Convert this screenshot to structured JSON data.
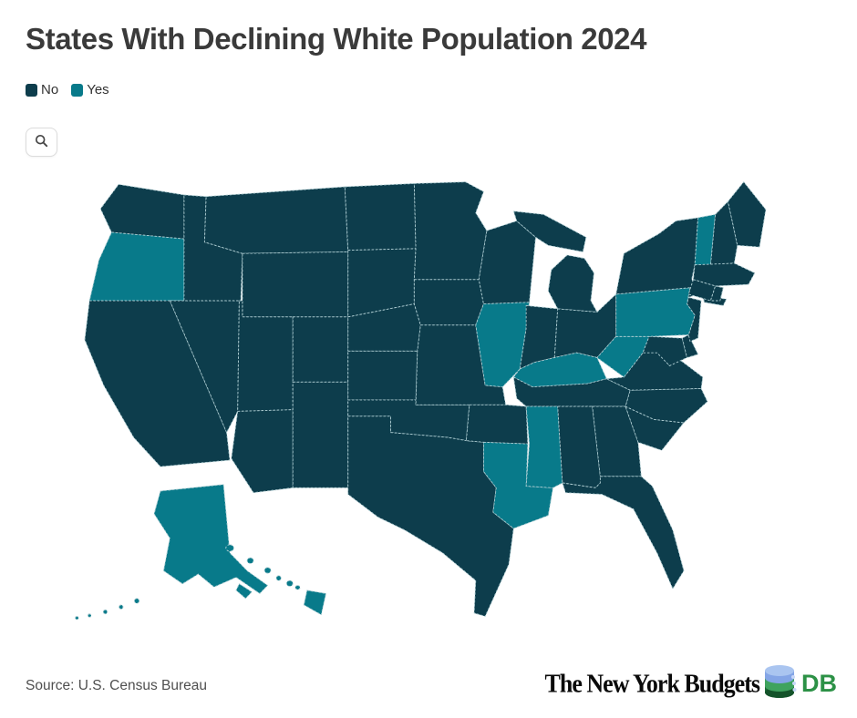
{
  "title": "States With Declining White Population 2024",
  "legend": {
    "items": [
      {
        "label": "No",
        "color": "#0d3d4c"
      },
      {
        "label": "Yes",
        "color": "#087a8a"
      }
    ]
  },
  "toolbar": {
    "zoom_icon": "magnifier"
  },
  "map": {
    "border_color": "#aecdd2",
    "no_color": "#0d3d4c",
    "yes_color": "#087a8a"
  },
  "source": {
    "label": "Source: U.S. Census Bureau"
  },
  "logo": {
    "name_text": "The New York Budgets",
    "db_text": "DB"
  },
  "chart_data": {
    "type": "heatmap",
    "chart_kind": "us-choropleth-map",
    "title": "States With Declining White Population 2024",
    "legend_entries": [
      "No",
      "Yes"
    ],
    "colors": {
      "No": "#0d3d4c",
      "Yes": "#087a8a"
    },
    "source": "U.S. Census Bureau",
    "states": [
      {
        "abbr": "WA",
        "name": "Washington",
        "declining": "No"
      },
      {
        "abbr": "OR",
        "name": "Oregon",
        "declining": "Yes"
      },
      {
        "abbr": "CA",
        "name": "California",
        "declining": "No"
      },
      {
        "abbr": "NV",
        "name": "Nevada",
        "declining": "No"
      },
      {
        "abbr": "ID",
        "name": "Idaho",
        "declining": "No"
      },
      {
        "abbr": "MT",
        "name": "Montana",
        "declining": "No"
      },
      {
        "abbr": "WY",
        "name": "Wyoming",
        "declining": "No"
      },
      {
        "abbr": "UT",
        "name": "Utah",
        "declining": "No"
      },
      {
        "abbr": "CO",
        "name": "Colorado",
        "declining": "No"
      },
      {
        "abbr": "AZ",
        "name": "Arizona",
        "declining": "No"
      },
      {
        "abbr": "NM",
        "name": "New Mexico",
        "declining": "No"
      },
      {
        "abbr": "ND",
        "name": "North Dakota",
        "declining": "No"
      },
      {
        "abbr": "SD",
        "name": "South Dakota",
        "declining": "No"
      },
      {
        "abbr": "NE",
        "name": "Nebraska",
        "declining": "No"
      },
      {
        "abbr": "KS",
        "name": "Kansas",
        "declining": "No"
      },
      {
        "abbr": "OK",
        "name": "Oklahoma",
        "declining": "No"
      },
      {
        "abbr": "TX",
        "name": "Texas",
        "declining": "No"
      },
      {
        "abbr": "MN",
        "name": "Minnesota",
        "declining": "No"
      },
      {
        "abbr": "IA",
        "name": "Iowa",
        "declining": "No"
      },
      {
        "abbr": "MO",
        "name": "Missouri",
        "declining": "No"
      },
      {
        "abbr": "AR",
        "name": "Arkansas",
        "declining": "No"
      },
      {
        "abbr": "LA",
        "name": "Louisiana",
        "declining": "Yes"
      },
      {
        "abbr": "WI",
        "name": "Wisconsin",
        "declining": "No"
      },
      {
        "abbr": "IL",
        "name": "Illinois",
        "declining": "Yes"
      },
      {
        "abbr": "MI",
        "name": "Michigan",
        "declining": "No"
      },
      {
        "abbr": "IN",
        "name": "Indiana",
        "declining": "No"
      },
      {
        "abbr": "OH",
        "name": "Ohio",
        "declining": "No"
      },
      {
        "abbr": "KY",
        "name": "Kentucky",
        "declining": "Yes"
      },
      {
        "abbr": "TN",
        "name": "Tennessee",
        "declining": "No"
      },
      {
        "abbr": "MS",
        "name": "Mississippi",
        "declining": "Yes"
      },
      {
        "abbr": "AL",
        "name": "Alabama",
        "declining": "No"
      },
      {
        "abbr": "GA",
        "name": "Georgia",
        "declining": "No"
      },
      {
        "abbr": "FL",
        "name": "Florida",
        "declining": "No"
      },
      {
        "abbr": "SC",
        "name": "South Carolina",
        "declining": "No"
      },
      {
        "abbr": "NC",
        "name": "North Carolina",
        "declining": "No"
      },
      {
        "abbr": "VA",
        "name": "Virginia",
        "declining": "No"
      },
      {
        "abbr": "WV",
        "name": "West Virginia",
        "declining": "Yes"
      },
      {
        "abbr": "MD",
        "name": "Maryland",
        "declining": "No"
      },
      {
        "abbr": "DE",
        "name": "Delaware",
        "declining": "No"
      },
      {
        "abbr": "NJ",
        "name": "New Jersey",
        "declining": "No"
      },
      {
        "abbr": "PA",
        "name": "Pennsylvania",
        "declining": "Yes"
      },
      {
        "abbr": "NY",
        "name": "New York",
        "declining": "No"
      },
      {
        "abbr": "VT",
        "name": "Vermont",
        "declining": "Yes"
      },
      {
        "abbr": "NH",
        "name": "New Hampshire",
        "declining": "No"
      },
      {
        "abbr": "ME",
        "name": "Maine",
        "declining": "No"
      },
      {
        "abbr": "MA",
        "name": "Massachusetts",
        "declining": "No"
      },
      {
        "abbr": "CT",
        "name": "Connecticut",
        "declining": "No"
      },
      {
        "abbr": "RI",
        "name": "Rhode Island",
        "declining": "No"
      },
      {
        "abbr": "AK",
        "name": "Alaska",
        "declining": "Yes"
      },
      {
        "abbr": "HI",
        "name": "Hawaii",
        "declining": "Yes"
      }
    ]
  }
}
